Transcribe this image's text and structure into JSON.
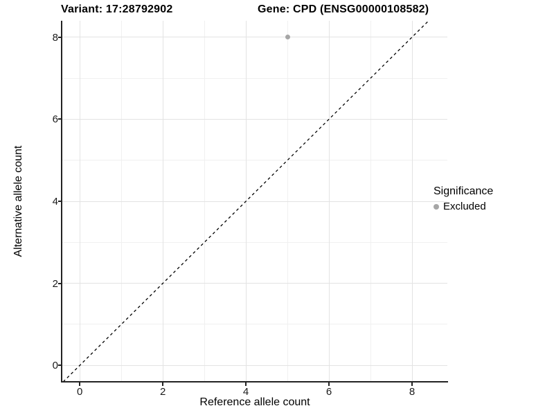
{
  "chart_data": {
    "type": "scatter",
    "title_left": "Variant: 17:28792902",
    "title_right": "Gene: CPD (ENSG00000108582)",
    "xlabel": "Reference allele count",
    "ylabel": "Alternative allele count",
    "x_ticks": [
      0,
      2,
      4,
      6,
      8
    ],
    "y_ticks": [
      0,
      2,
      4,
      6,
      8
    ],
    "xlim": [
      -0.42,
      8.85
    ],
    "ylim": [
      -0.4,
      8.4
    ],
    "grid": {
      "major": true,
      "minor": true
    },
    "identity_line": {
      "slope": 1,
      "intercept": 0,
      "style": "dashed",
      "color": "#000000"
    },
    "series": [
      {
        "name": "Excluded",
        "color": "#a6a6a6",
        "points": [
          {
            "x": 5,
            "y": 8
          }
        ]
      }
    ],
    "legend": {
      "title": "Significance",
      "position": "right",
      "items": [
        {
          "label": "Excluded",
          "color": "#a6a6a6"
        }
      ]
    },
    "colors": {
      "grid_major": "#e3e3e3",
      "grid_minor": "#f0f0f0",
      "axis": "#222222",
      "background": "#ffffff"
    }
  }
}
